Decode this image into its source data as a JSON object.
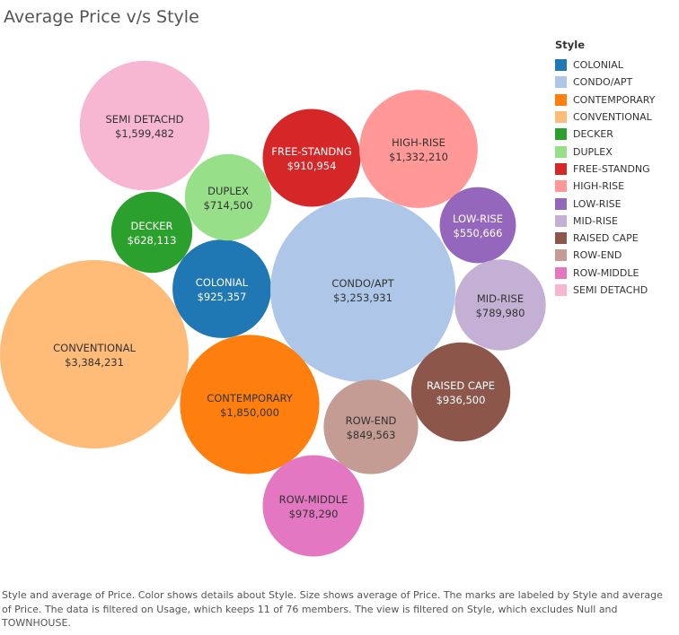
{
  "chart_data": {
    "type": "bubble",
    "title": "Average Price v/s Style",
    "legend_title": "Style",
    "legend_placement": "right",
    "caption": "Style and average of Price.  Color shows details about Style.  Size shows average of Price.  The marks are labeled by Style and average of Price. The data is filtered on Usage, which keeps 11 of 76 members. The view is filtered on Style, which excludes Null and TOWNHOUSE.",
    "series": [
      {
        "name": "COLONIAL",
        "value": 925357,
        "label": "$925,357",
        "color": "#1f77b4",
        "text_color": "#ffffff"
      },
      {
        "name": "CONDO/APT",
        "value": 3253931,
        "label": "$3,253,931",
        "color": "#aec7e8",
        "text_color": "#333333"
      },
      {
        "name": "CONTEMPORARY",
        "value": 1850000,
        "label": "$1,850,000",
        "color": "#ff7f0e",
        "text_color": "#333333"
      },
      {
        "name": "CONVENTIONAL",
        "value": 3384231,
        "label": "$3,384,231",
        "color": "#ffbb78",
        "text_color": "#333333"
      },
      {
        "name": "DECKER",
        "value": 628113,
        "label": "$628,113",
        "color": "#2ca02c",
        "text_color": "#ffffff"
      },
      {
        "name": "DUPLEX",
        "value": 714500,
        "label": "$714,500",
        "color": "#98df8a",
        "text_color": "#333333"
      },
      {
        "name": "FREE-STANDNG",
        "value": 910954,
        "label": "$910,954",
        "color": "#d62728",
        "text_color": "#ffffff"
      },
      {
        "name": "HIGH-RISE",
        "value": 1332210,
        "label": "$1,332,210",
        "color": "#ff9896",
        "text_color": "#333333"
      },
      {
        "name": "LOW-RISE",
        "value": 550666,
        "label": "$550,666",
        "color": "#9467bd",
        "text_color": "#ffffff"
      },
      {
        "name": "MID-RISE",
        "value": 789980,
        "label": "$789,980",
        "color": "#c5b0d5",
        "text_color": "#333333"
      },
      {
        "name": "RAISED CAPE",
        "value": 936500,
        "label": "$936,500",
        "color": "#8c564b",
        "text_color": "#ffffff"
      },
      {
        "name": "ROW-END",
        "value": 849563,
        "label": "$849,563",
        "color": "#c49c94",
        "text_color": "#333333"
      },
      {
        "name": "ROW-MIDDLE",
        "value": 978290,
        "label": "$978,290",
        "color": "#e377c2",
        "text_color": "#333333"
      },
      {
        "name": "SEMI DETACHD",
        "value": 1599482,
        "label": "$1,599,482",
        "color": "#f7b6d2",
        "text_color": "#333333"
      }
    ]
  }
}
